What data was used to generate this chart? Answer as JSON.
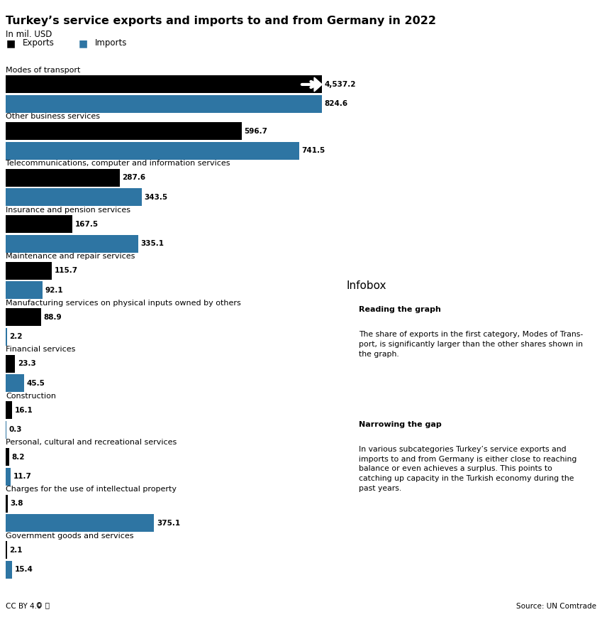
{
  "title": "Turkey’s service exports and imports to and from Germany in 2022",
  "subtitle": "In mil. USD",
  "categories": [
    "Modes of transport",
    "Other business services",
    "Telecommunications, computer and information services",
    "Insurance and pension services",
    "Maintenance and repair services",
    "Manufacturing services on physical inputs owned by others",
    "Financial services",
    "Construction",
    "Personal, cultural and recreational services",
    "Charges for the use of intellectual property",
    "Government goods and services"
  ],
  "exports": [
    4537.2,
    596.7,
    287.6,
    167.5,
    115.7,
    88.9,
    23.3,
    16.1,
    8.2,
    3.8,
    2.1
  ],
  "imports": [
    824.6,
    741.5,
    343.5,
    335.1,
    92.1,
    2.2,
    45.5,
    0.3,
    11.7,
    375.1,
    15.4
  ],
  "export_color": "#000000",
  "import_color": "#2e75a3",
  "bar_height": 0.38,
  "infobox_title": "Infobox",
  "infobox_subtitle1": "Reading the graph",
  "infobox_text1": "The share of exports in the first category, Modes of Trans-\nport, is significantly larger than the other shares shown in\nthe graph.",
  "infobox_subtitle2": "Narrowing the gap",
  "infobox_text2": "In various subcategories Turkey’s service exports and\nimports to and from Germany is either close to reaching\nbalance or even achieves a surplus. This points to\ncatching up capacity in the Turkish economy during the\npast years.",
  "footer_left": "CC BY 4.0",
  "footer_right": "Source: UN Comtrade",
  "background_color": "#ffffff",
  "infobox_bg_color": "#d9d9d9",
  "display_max": 800.0,
  "true_max": 4537.2
}
